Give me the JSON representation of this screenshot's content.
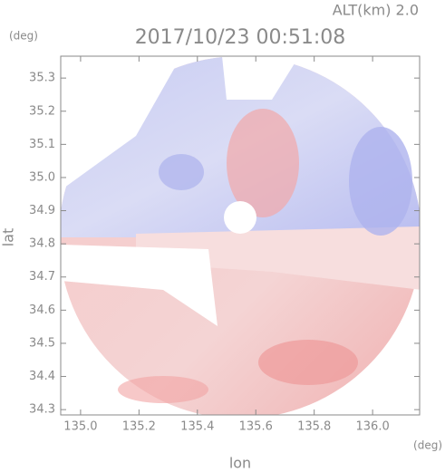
{
  "chart_data": {
    "type": "image",
    "title": "2017/10/23 00:51:08",
    "subtitle": "ALT(km) 2.0",
    "x_label": "lon",
    "y_label": "lat",
    "x_unit": "(deg)",
    "y_unit": "(deg)",
    "xlim": [
      134.932,
      136.161
    ],
    "ylim": [
      34.284,
      35.366
    ],
    "xticks": [
      {
        "value": 135.0,
        "label": "135.0"
      },
      135.2,
      135.4,
      135.6,
      135.8,
      {
        "value": 136.0,
        "label": "136.0"
      }
    ],
    "yticks": [
      34.3,
      34.4,
      34.5,
      34.6,
      34.7,
      34.8,
      34.9,
      {
        "value": 35.0,
        "label": "35.0"
      },
      35.1,
      35.2,
      35.3
    ]
  }
}
